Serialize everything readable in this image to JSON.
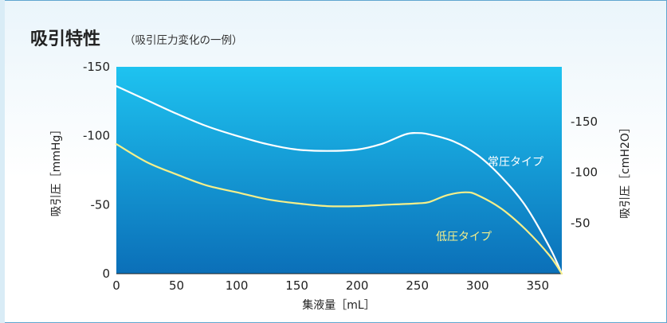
{
  "header": {
    "title": "吸引特性",
    "subtitle": "（吸引圧力変化の一例）"
  },
  "colors": {
    "plot_top": "#1ec3f0",
    "plot_bottom": "#0b6fb8",
    "series_normal": "#ffffff",
    "series_low": "#f5ef8a"
  },
  "chart_data": {
    "type": "line",
    "xlabel": "集液量［mL］",
    "ylabel": "吸引圧［mmHg］",
    "y2label": "吸引圧［cmH2O］",
    "xlim": [
      0,
      370
    ],
    "ylim": [
      0,
      -150
    ],
    "x_ticks": [
      0,
      50,
      100,
      150,
      200,
      250,
      300,
      350
    ],
    "y_ticks": [
      0,
      -50,
      -100,
      -150
    ],
    "y_tick_labels": [
      "0",
      "-50",
      "-100",
      "-150"
    ],
    "y2_ticks": [
      -50,
      -100,
      -150
    ],
    "y2_tick_labels": [
      "-50",
      "-100",
      "-150"
    ],
    "series": [
      {
        "name": "常圧タイプ",
        "x": [
          0,
          25,
          50,
          75,
          100,
          125,
          150,
          175,
          200,
          220,
          240,
          250,
          260,
          280,
          300,
          320,
          340,
          360,
          370
        ],
        "y": [
          -136,
          -126,
          -116,
          -107,
          -100,
          -94,
          -90,
          -89,
          -90,
          -94,
          -101,
          -102,
          -101,
          -96,
          -86,
          -70,
          -49,
          -19,
          0
        ]
      },
      {
        "name": "低圧タイプ",
        "x": [
          0,
          25,
          50,
          75,
          100,
          125,
          150,
          175,
          200,
          225,
          250,
          260,
          275,
          290,
          300,
          320,
          340,
          360,
          370
        ],
        "y": [
          -94,
          -81,
          -72,
          -64,
          -59,
          -54,
          -51,
          -49,
          -49,
          -50,
          -51,
          -52,
          -57,
          -59,
          -57,
          -47,
          -32,
          -13,
          0
        ]
      }
    ]
  }
}
